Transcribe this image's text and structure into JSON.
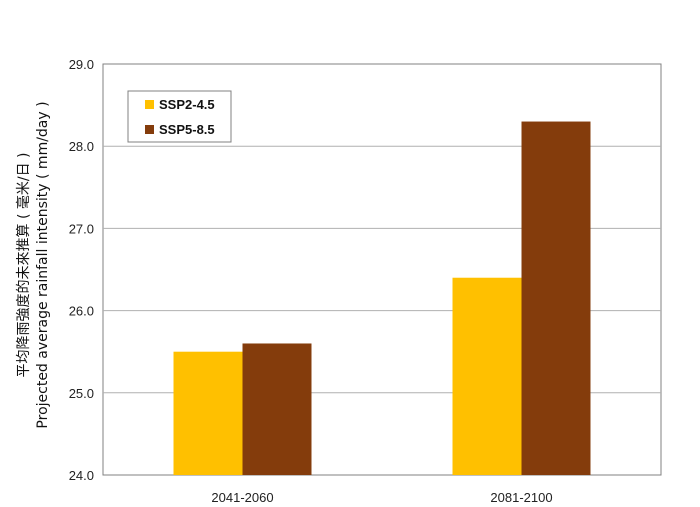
{
  "chart_data": {
    "type": "bar",
    "categories": [
      "2041-2060",
      "2081-2100"
    ],
    "series": [
      {
        "name": "SSP2-4.5",
        "color": "#FFC000",
        "values": [
          25.5,
          26.4
        ]
      },
      {
        "name": "SSP5-8.5",
        "color": "#843C0C",
        "values": [
          25.6,
          28.3
        ]
      }
    ],
    "ylim": [
      24.0,
      29.0
    ],
    "yticks": [
      "24.0",
      "25.0",
      "26.0",
      "27.0",
      "28.0",
      "29.0"
    ],
    "ylabel_line1": "平均降雨強度的未來推算 ( 毫米/日 )",
    "ylabel_line2": "Projected average rainfall intensity ( mm/day )",
    "grid": true,
    "legend_position": "top-left"
  }
}
